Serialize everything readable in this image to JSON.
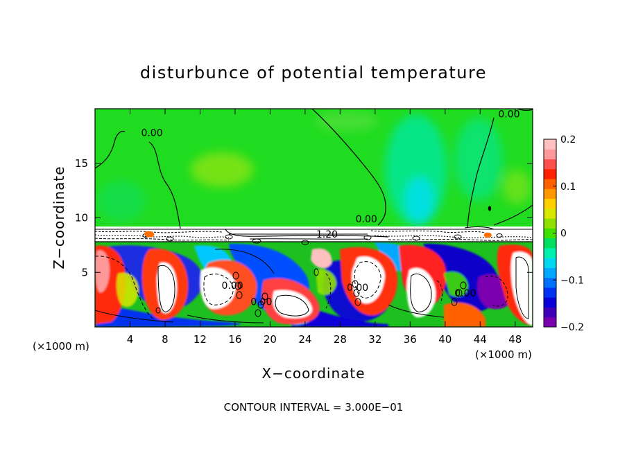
{
  "chart_data": {
    "type": "heatmap",
    "title": "disturbunce of potential temperature",
    "xlabel": "X−coordinate",
    "ylabel": "Z−coordinate",
    "xunit": "(×1000 m)",
    "xunit_right": "(×1000 m)",
    "xlim": [
      0,
      50
    ],
    "ylim": [
      0,
      20
    ],
    "xticks": [
      4,
      8,
      12,
      16,
      20,
      24,
      28,
      32,
      36,
      40,
      44,
      48
    ],
    "yticks": [
      5,
      10,
      15
    ],
    "footer": "CONTOUR INTERVAL = 3.000E−01",
    "colorbar": {
      "range": [
        -0.2,
        0.2
      ],
      "ticks": [
        {
          "value": 0.2,
          "label": "0.2"
        },
        {
          "value": 0.1,
          "label": "0.1"
        },
        {
          "value": 0,
          "label": "0"
        },
        {
          "value": -0.1,
          "label": "−0.1"
        },
        {
          "value": -0.2,
          "label": "−0.2"
        }
      ],
      "colors": [
        "#7a00b0",
        "#3f00b8",
        "#0a00d8",
        "#0030f0",
        "#0070ff",
        "#00a8ff",
        "#00d8f0",
        "#00f0b0",
        "#00e060",
        "#40e000",
        "#90e000",
        "#d8e800",
        "#ffd000",
        "#ff9800",
        "#ff6000",
        "#ff2000",
        "#ff5050",
        "#ff9898",
        "#ffc0c0"
      ]
    },
    "contour_labels": [
      {
        "x": 6.5,
        "y": 17.5,
        "text": "0.00"
      },
      {
        "x": 47.3,
        "y": 19.2,
        "text": "0.00"
      },
      {
        "x": 31.0,
        "y": 9.6,
        "text": "0.00"
      },
      {
        "x": 26.5,
        "y": 8.2,
        "text": "1.20"
      },
      {
        "x": 15.7,
        "y": 3.5,
        "text": "0.00"
      },
      {
        "x": 19.0,
        "y": 2.0,
        "text": "0.00"
      },
      {
        "x": 30.0,
        "y": 3.3,
        "text": "0.00"
      },
      {
        "x": 42.3,
        "y": 2.8,
        "text": "0.00"
      }
    ]
  }
}
